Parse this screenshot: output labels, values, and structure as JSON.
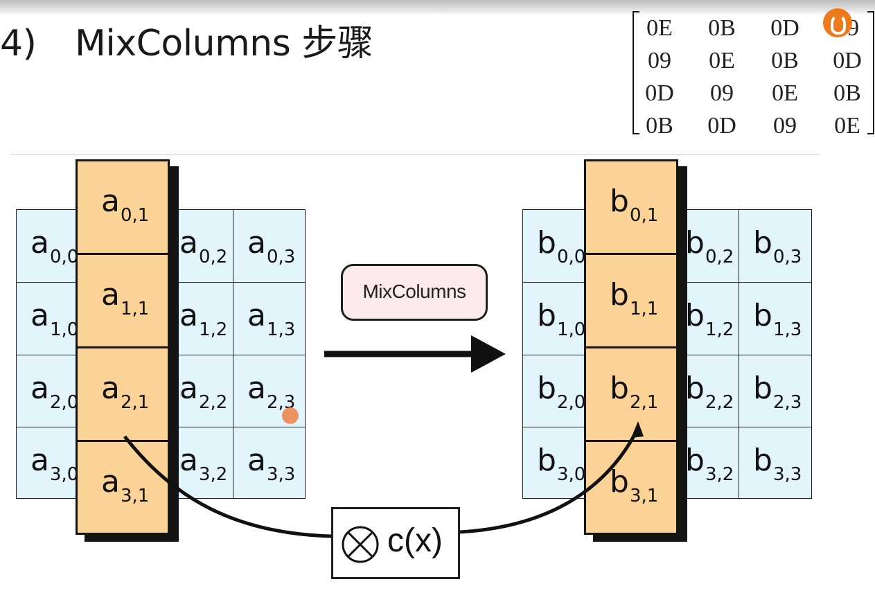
{
  "header": {
    "number": "4)",
    "title": "MixColumns 步骤"
  },
  "matrix": {
    "rows": [
      [
        "0E",
        "0B",
        "0D",
        "09"
      ],
      [
        "09",
        "0E",
        "0B",
        "0D"
      ],
      [
        "0D",
        "09",
        "0E",
        "0B"
      ],
      [
        "0B",
        "0D",
        "09",
        "0E"
      ]
    ]
  },
  "left_state": {
    "letter": "a",
    "cells": {
      "r0c0": "0,0",
      "r0c1": "0,1",
      "r0c2": "0,2",
      "r0c3": "0,3",
      "r1c0": "1,0",
      "r1c1": "1,1",
      "r1c2": "1,2",
      "r1c3": "1,3",
      "r2c0": "2,0",
      "r2c1": "2,1",
      "r2c2": "2,2",
      "r2c3": "2,3",
      "r3c0": "3,0",
      "r3c1": "3,1",
      "r3c2": "3,2",
      "r3c3": "3,3"
    }
  },
  "right_state": {
    "letter": "b",
    "cells": {
      "r0c0": "0,0",
      "r0c1": "0,1",
      "r0c2": "0,2",
      "r0c3": "0,3",
      "r1c0": "1,0",
      "r1c1": "1,1",
      "r1c2": "1,2",
      "r1c3": "1,3",
      "r2c0": "2,0",
      "r2c1": "2,1",
      "r2c2": "2,2",
      "r2c3": "2,3",
      "r3c0": "3,0",
      "r3c1": "3,1",
      "r3c2": "3,2",
      "r3c3": "3,3"
    }
  },
  "operation": {
    "label": "MixColumns",
    "multiplier": "c(x)"
  },
  "icons": {
    "logo": "orange-logo-icon",
    "otimes": "circled-times-icon",
    "cursor": "mouse-cursor-icon"
  },
  "colors": {
    "state_cell": "#e2f4fc",
    "active_column": "#fbd396",
    "mixcolumns_button": "#fdeaea"
  }
}
